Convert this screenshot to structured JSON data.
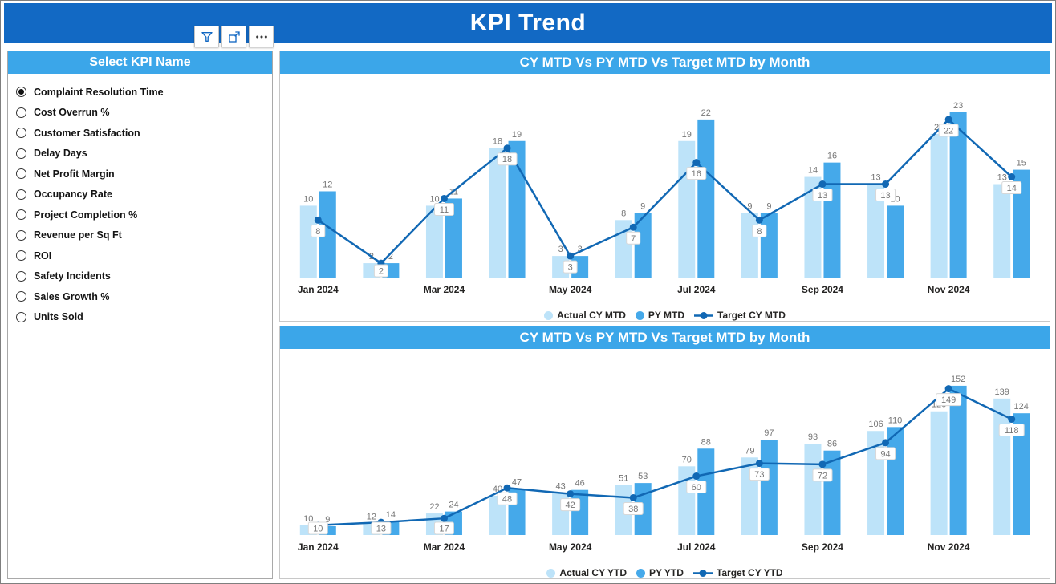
{
  "header": {
    "title": "KPI Trend"
  },
  "toolbar": {
    "icons": [
      {
        "name": "filter-icon"
      },
      {
        "name": "focus-mode-icon"
      },
      {
        "name": "more-options-icon"
      }
    ]
  },
  "slicer": {
    "title": "Select KPI Name",
    "selected": "Complaint Resolution Time",
    "items": [
      {
        "label": "Complaint Resolution Time",
        "selected": true
      },
      {
        "label": "Cost Overrun %",
        "selected": false
      },
      {
        "label": "Customer Satisfaction",
        "selected": false
      },
      {
        "label": "Delay Days",
        "selected": false
      },
      {
        "label": "Net Profit Margin",
        "selected": false
      },
      {
        "label": "Occupancy Rate",
        "selected": false
      },
      {
        "label": "Project Completion %",
        "selected": false
      },
      {
        "label": "Revenue per Sq Ft",
        "selected": false
      },
      {
        "label": "ROI",
        "selected": false
      },
      {
        "label": "Safety Incidents",
        "selected": false
      },
      {
        "label": "Sales Growth %",
        "selected": false
      },
      {
        "label": "Units Sold",
        "selected": false
      }
    ]
  },
  "colors": {
    "header_bg": "#1269C4",
    "panel_title_bg": "#3BA6E9",
    "bar_light": "#BDE3F9",
    "bar_dark": "#45A9EA",
    "line": "#1168B4",
    "value_label": "#767676",
    "axis_text": "#252423"
  },
  "chart_data": [
    {
      "type": "bar",
      "subtype": "combo-bar-line",
      "title": "CY MTD Vs PY MTD Vs Target MTD by Month",
      "categories": [
        "Jan 2024",
        "Feb 2024",
        "Mar 2024",
        "Apr 2024",
        "May 2024",
        "Jun 2024",
        "Jul 2024",
        "Aug 2024",
        "Sep 2024",
        "Oct 2024",
        "Nov 2024",
        "Dec 2024"
      ],
      "x_ticks_shown": [
        "Jan 2024",
        "Mar 2024",
        "May 2024",
        "Jul 2024",
        "Sep 2024",
        "Nov 2024"
      ],
      "ylim": [
        0,
        25
      ],
      "legend_position": "bottom",
      "grid": false,
      "series": [
        {
          "name": "Actual CY MTD",
          "type": "bar",
          "color": "#BDE3F9",
          "values": [
            10,
            2,
            10,
            18,
            3,
            8,
            19,
            9,
            14,
            13,
            20,
            13
          ]
        },
        {
          "name": "PY MTD",
          "type": "bar",
          "color": "#45A9EA",
          "values": [
            12,
            2,
            11,
            19,
            3,
            9,
            22,
            9,
            16,
            10,
            23,
            15
          ]
        },
        {
          "name": "Target CY MTD",
          "type": "line",
          "color": "#1168B4",
          "values": [
            8,
            2,
            11,
            18,
            3,
            7,
            16,
            8,
            13,
            13,
            22,
            14
          ]
        }
      ]
    },
    {
      "type": "bar",
      "subtype": "combo-bar-line",
      "title": "CY MTD Vs PY MTD Vs Target MTD by Month",
      "categories": [
        "Jan 2024",
        "Feb 2024",
        "Mar 2024",
        "Apr 2024",
        "May 2024",
        "Jun 2024",
        "Jul 2024",
        "Aug 2024",
        "Sep 2024",
        "Oct 2024",
        "Nov 2024",
        "Dec 2024"
      ],
      "x_ticks_shown": [
        "Jan 2024",
        "Mar 2024",
        "May 2024",
        "Jul 2024",
        "Sep 2024",
        "Nov 2024"
      ],
      "ylim": [
        0,
        165
      ],
      "legend_position": "bottom",
      "grid": false,
      "series": [
        {
          "name": "Actual CY YTD",
          "type": "bar",
          "color": "#BDE3F9",
          "values": [
            10,
            12,
            22,
            40,
            43,
            51,
            70,
            79,
            93,
            106,
            126,
            139
          ]
        },
        {
          "name": "PY YTD",
          "type": "bar",
          "color": "#45A9EA",
          "values": [
            9,
            14,
            24,
            47,
            46,
            53,
            88,
            97,
            86,
            110,
            152,
            124
          ]
        },
        {
          "name": "Target CY YTD",
          "type": "line",
          "color": "#1168B4",
          "values": [
            10,
            13,
            17,
            48,
            42,
            38,
            60,
            73,
            72,
            94,
            149,
            118
          ]
        }
      ]
    }
  ]
}
